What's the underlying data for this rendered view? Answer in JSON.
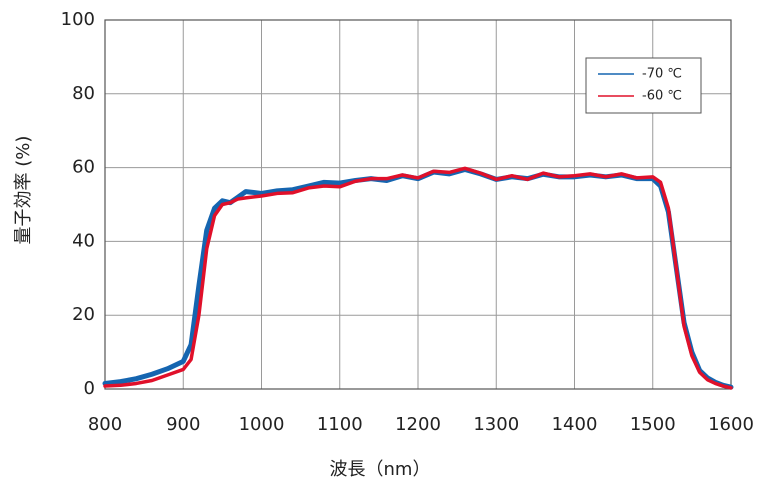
{
  "chart_data": {
    "type": "line",
    "xlabel": "波長（nm）",
    "ylabel": "量子効率 (%)",
    "x": [
      800,
      820,
      840,
      860,
      880,
      900,
      910,
      920,
      930,
      940,
      950,
      960,
      970,
      980,
      1000,
      1020,
      1040,
      1060,
      1080,
      1100,
      1120,
      1140,
      1160,
      1180,
      1200,
      1220,
      1240,
      1260,
      1280,
      1300,
      1320,
      1340,
      1360,
      1380,
      1400,
      1420,
      1440,
      1460,
      1480,
      1500,
      1510,
      1520,
      1530,
      1540,
      1550,
      1560,
      1570,
      1580,
      1590,
      1600
    ],
    "series": [
      {
        "name": "-70 ℃",
        "color": "#1565b0",
        "values": [
          1.5,
          2,
          2.8,
          4,
          5.5,
          7.5,
          12,
          28,
          43,
          49,
          51,
          50.5,
          52,
          53.5,
          53,
          53.7,
          54,
          55,
          56,
          55.8,
          56.5,
          57,
          56.5,
          57.8,
          57,
          58.8,
          58.3,
          59.5,
          58.3,
          56.8,
          57.5,
          57,
          58.2,
          57.5,
          57.5,
          58,
          57.5,
          58,
          57,
          57,
          55,
          48,
          33,
          18,
          10,
          5,
          3,
          1.8,
          1,
          0.5
        ]
      },
      {
        "name": "-60 ℃",
        "color": "#e0102a",
        "values": [
          0.8,
          1,
          1.5,
          2.3,
          3.8,
          5.3,
          8,
          20,
          38,
          47,
          50,
          50.5,
          51.5,
          51.8,
          52.3,
          53,
          53.2,
          54.5,
          55,
          54.8,
          56.3,
          57,
          57,
          58,
          57.2,
          59,
          58.7,
          59.8,
          58.5,
          56.8,
          57.8,
          56.8,
          58.5,
          57.5,
          57.8,
          58.3,
          57.5,
          58.3,
          57.2,
          57.5,
          56,
          49,
          33,
          17,
          9,
          4.5,
          2.5,
          1.5,
          0.8,
          0.3
        ]
      }
    ],
    "xlim": [
      800,
      1600
    ],
    "xticks": [
      800,
      900,
      1000,
      1100,
      1200,
      1300,
      1400,
      1500,
      1600
    ],
    "ylim": [
      0,
      100
    ],
    "yticks": [
      0,
      20,
      40,
      60,
      80,
      100
    ],
    "grid": true,
    "legend": "upper right"
  }
}
